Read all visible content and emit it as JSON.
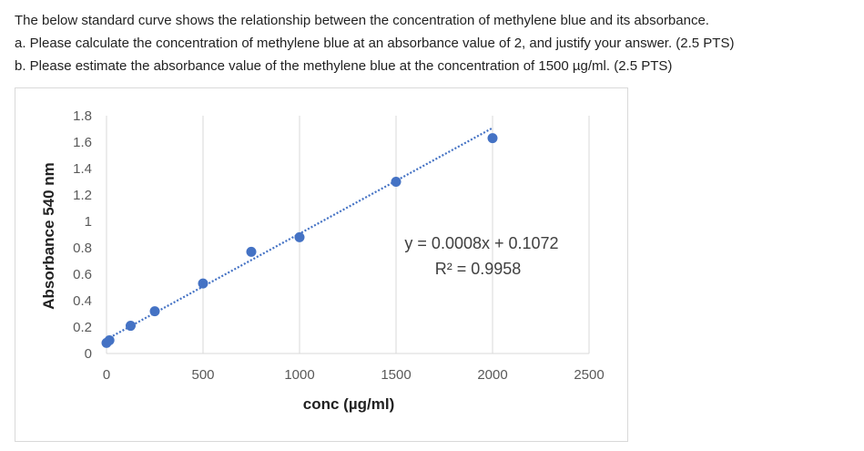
{
  "question": {
    "intro": "The below standard curve shows the relationship between the concentration of methylene blue and its absorbance.",
    "part_a": "a. Please calculate the concentration of methylene blue at an absorbance value of 2, and justify your answer. (2.5 PTS)",
    "part_b": "b. Please estimate the absorbance value of the methylene blue at the concentration of 1500 µg/ml. (2.5 PTS)"
  },
  "chart_data": {
    "type": "scatter",
    "xlabel": "conc (µg/ml)",
    "ylabel": "Absorbance 540 nm",
    "xlim": [
      0,
      2500
    ],
    "ylim": [
      0,
      1.8
    ],
    "x_ticks": [
      0,
      500,
      1000,
      1500,
      2000,
      2500
    ],
    "x_tick_labels": [
      "0",
      "500",
      "1000",
      "1500",
      "2000",
      "2500"
    ],
    "y_ticks": [
      0,
      0.2,
      0.4,
      0.6,
      0.8,
      1,
      1.2,
      1.4,
      1.6,
      1.8
    ],
    "y_tick_labels": [
      "0",
      "0.2",
      "0.4",
      "0.6",
      "0.8",
      "1",
      "1.2",
      "1.4",
      "1.6",
      "1.8"
    ],
    "grid": "vertical",
    "series": [
      {
        "x": [
          0,
          15,
          125,
          250,
          500,
          750,
          1000,
          1500,
          2000
        ],
        "y": [
          0.08,
          0.1,
          0.21,
          0.32,
          0.53,
          0.77,
          0.88,
          1.3,
          1.63
        ],
        "color": "#4472C4"
      }
    ],
    "trendline": {
      "type": "linear",
      "slope": 0.0008,
      "intercept": 0.1072,
      "style": "dotted",
      "color": "#4472C4",
      "equation": "y = 0.0008x + 0.1072",
      "r_squared": "R² = 0.9958"
    }
  }
}
